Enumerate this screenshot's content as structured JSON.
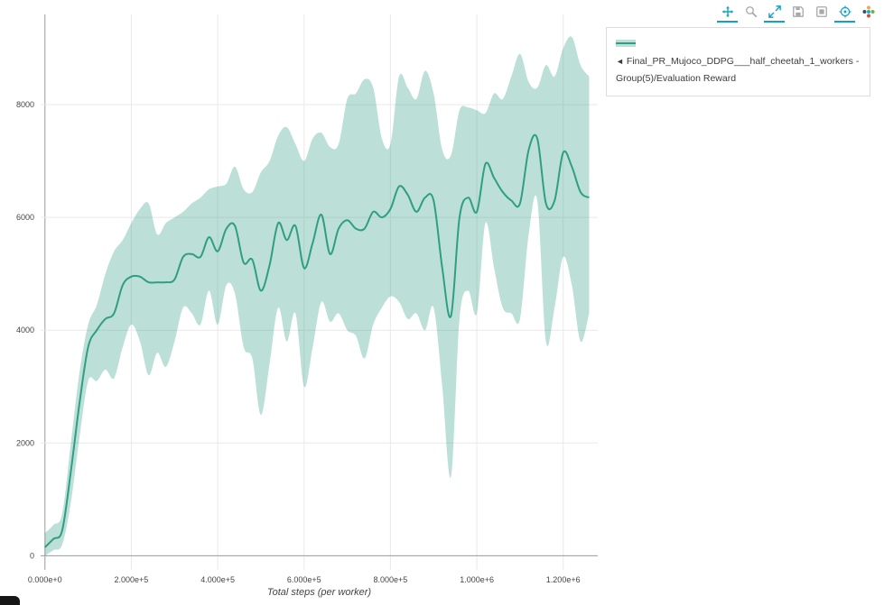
{
  "page": {
    "background": "#ffffff"
  },
  "modebar": {
    "active_color": "#12a3c4",
    "icon_color": "#a5a9ad",
    "buttons": [
      {
        "name": "pan-icon",
        "active": true
      },
      {
        "name": "zoom-icon",
        "active": false
      },
      {
        "name": "autoscale-icon",
        "active": true
      },
      {
        "name": "reset-axes-icon",
        "active": false
      },
      {
        "name": "save-view-icon",
        "active": false
      },
      {
        "name": "hover-closest-icon",
        "active": true
      },
      {
        "name": "plotly-logo-icon",
        "active": false
      }
    ]
  },
  "legend": {
    "items": [
      {
        "prefix": "◄",
        "label": "Final_PR_Mujoco_DDPG___half_cheetah_1_workers - Group(5)/Evaluation Reward"
      }
    ]
  },
  "chart_data": {
    "type": "line",
    "title": "",
    "xlabel": "Total steps (per worker)",
    "ylabel": "",
    "grid": true,
    "legend_position": "top-right",
    "xlim": [
      -10000,
      1280000
    ],
    "ylim": [
      -250,
      9600
    ],
    "colors": {
      "grid": "#e9e9e9",
      "zeroline": "#9a9a9a",
      "tick": "#444444"
    },
    "xticks": {
      "values": [
        0,
        200000,
        400000,
        600000,
        800000,
        1000000,
        1200000
      ],
      "labels": [
        "0.000e+0",
        "2.000e+5",
        "4.000e+5",
        "6.000e+5",
        "8.000e+5",
        "1.000e+6",
        "1.200e+6"
      ]
    },
    "yticks": {
      "values": [
        0,
        2000,
        4000,
        6000,
        8000
      ],
      "labels": [
        "0",
        "2000",
        "4000",
        "6000",
        "8000"
      ]
    },
    "series": [
      {
        "name": "Final_PR_Mujoco_DDPG___half_cheetah_1_workers - Group(5)/Evaluation Reward",
        "line_color": "#2f9e83",
        "band_color": "rgba(47,158,131,0.32)",
        "x": [
          0,
          20000,
          40000,
          60000,
          80000,
          100000,
          120000,
          140000,
          160000,
          180000,
          200000,
          220000,
          240000,
          260000,
          280000,
          300000,
          320000,
          340000,
          360000,
          380000,
          400000,
          420000,
          440000,
          460000,
          480000,
          500000,
          520000,
          540000,
          560000,
          580000,
          600000,
          620000,
          640000,
          660000,
          680000,
          700000,
          720000,
          740000,
          760000,
          780000,
          800000,
          820000,
          840000,
          860000,
          880000,
          900000,
          920000,
          940000,
          960000,
          980000,
          1000000,
          1020000,
          1040000,
          1060000,
          1080000,
          1100000,
          1120000,
          1140000,
          1160000,
          1180000,
          1200000,
          1220000,
          1240000,
          1260000
        ],
        "mean": [
          150,
          300,
          450,
          1500,
          2700,
          3700,
          4000,
          4200,
          4300,
          4800,
          4950,
          4950,
          4850,
          4850,
          4850,
          4900,
          5300,
          5350,
          5300,
          5650,
          5400,
          5800,
          5850,
          5200,
          5250,
          4700,
          5150,
          5900,
          5600,
          5850,
          5100,
          5550,
          6050,
          5350,
          5800,
          5950,
          5800,
          5800,
          6100,
          6000,
          6150,
          6550,
          6400,
          6100,
          6350,
          6300,
          5100,
          4250,
          6000,
          6350,
          6100,
          6950,
          6700,
          6450,
          6300,
          6250,
          7200,
          7400,
          6250,
          6300,
          7150,
          6900,
          6450,
          6350
        ],
        "upper": [
          400,
          550,
          750,
          2000,
          3250,
          4100,
          4450,
          5000,
          5400,
          5600,
          5900,
          6150,
          6250,
          5700,
          5900,
          6000,
          6100,
          6250,
          6350,
          6500,
          6550,
          6600,
          6900,
          6500,
          6450,
          6800,
          7000,
          7450,
          7600,
          7300,
          7000,
          7400,
          7500,
          7250,
          7300,
          8100,
          8200,
          8450,
          8300,
          7400,
          7300,
          8500,
          8300,
          8100,
          8600,
          8200,
          7200,
          7100,
          7900,
          7950,
          7900,
          7850,
          8200,
          8100,
          8500,
          8900,
          8400,
          8300,
          8700,
          8500,
          9000,
          9200,
          8700,
          8500
        ],
        "lower": [
          0,
          100,
          200,
          950,
          2100,
          3100,
          3100,
          3300,
          3150,
          3700,
          4100,
          3800,
          3200,
          3600,
          3350,
          3800,
          4400,
          4300,
          4100,
          4700,
          4100,
          4800,
          4650,
          3700,
          3500,
          2500,
          3400,
          4400,
          3800,
          4300,
          3000,
          3700,
          4500,
          4150,
          4300,
          4000,
          3900,
          3500,
          4100,
          4400,
          4600,
          4500,
          4200,
          4300,
          4000,
          4400,
          3000,
          1400,
          4200,
          4700,
          4300,
          5900,
          5100,
          4400,
          4300,
          4200,
          5700,
          6300,
          3800,
          4400,
          5300,
          4800,
          3800,
          4300
        ]
      }
    ]
  }
}
